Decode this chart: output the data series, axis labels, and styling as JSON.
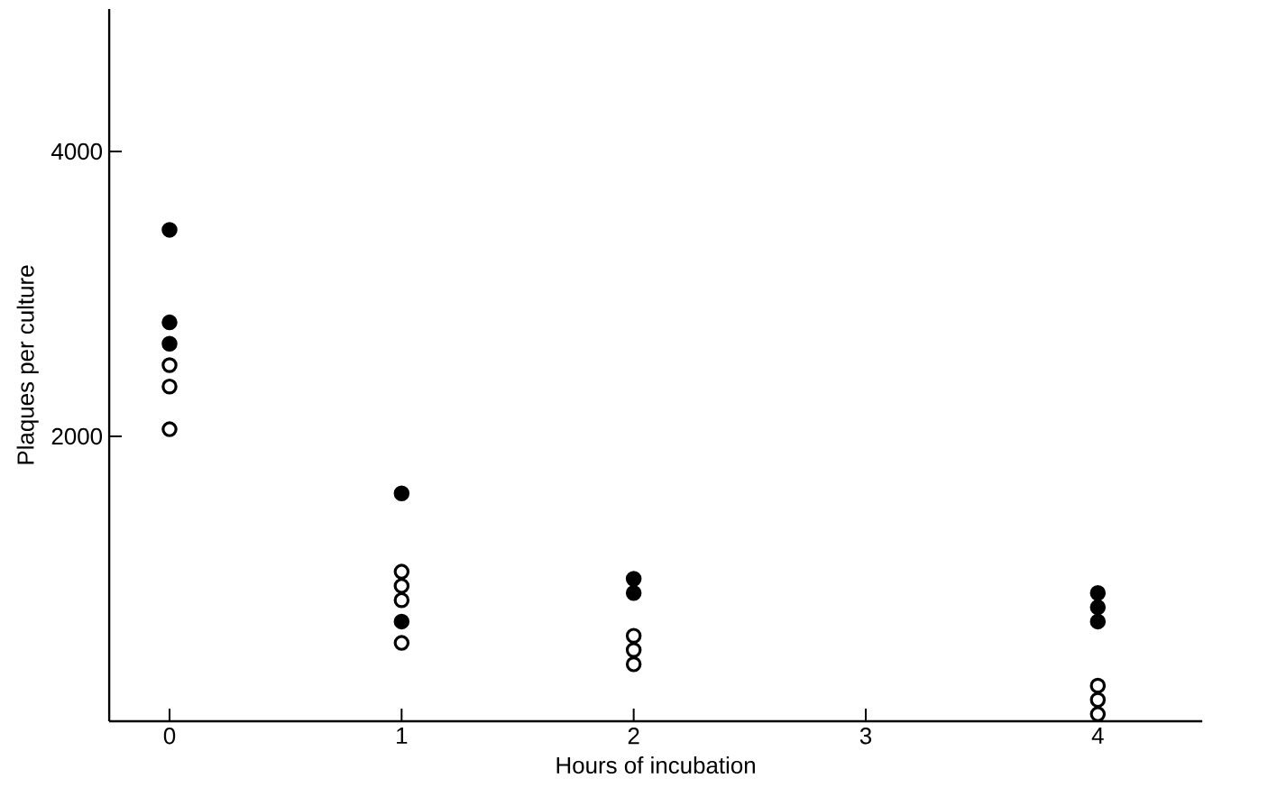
{
  "chart_data": {
    "type": "scatter",
    "xlabel": "Hours of incubation",
    "ylabel": "Plaques per culture",
    "xlim": [
      -0.26,
      4.45
    ],
    "ylim": [
      0,
      5000
    ],
    "xticks": [
      0,
      1,
      2,
      3,
      4
    ],
    "yticks": [
      2000,
      4000
    ],
    "grid": false,
    "series": [
      {
        "color": "#000000",
        "x": [
          0,
          0,
          0,
          1,
          1,
          2,
          2,
          4,
          4,
          4
        ],
        "values": [
          3450,
          2800,
          2650,
          1600,
          700,
          1000,
          900,
          900,
          800,
          700
        ]
      },
      {
        "color": "#ffffff",
        "x": [
          0,
          0,
          0,
          1,
          1,
          1,
          1,
          2,
          2,
          2,
          4,
          4,
          4
        ],
        "values": [
          2500,
          2350,
          2050,
          1050,
          950,
          850,
          550,
          600,
          500,
          400,
          250,
          150,
          50
        ]
      }
    ]
  }
}
